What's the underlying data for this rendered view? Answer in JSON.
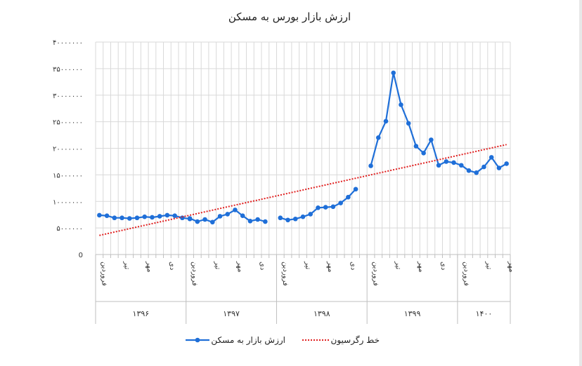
{
  "chart_data": {
    "type": "line",
    "title": "ارزش بازار بورس به مسکن",
    "ylim": [
      0,
      40000000
    ],
    "y_ticks": [
      "0",
      "5000000",
      "10000000",
      "15000000",
      "20000000",
      "25000000",
      "30000000",
      "35000000",
      "40000000"
    ],
    "y_tick_labels": [
      "0",
      "۵۰۰۰۰۰۰",
      "۱۰۰۰۰۰۰۰",
      "۱۵۰۰۰۰۰۰",
      "۲۰۰۰۰۰۰۰",
      "۲۵۰۰۰۰۰۰",
      "۳۰۰۰۰۰۰۰",
      "۳۵۰۰۰۰۰۰",
      "۴۰۰۰۰۰۰۰"
    ],
    "years": [
      "۱۳۹۶",
      "۱۳۹۷",
      "۱۳۹۸",
      "۱۳۹۹",
      "۱۴۰۰"
    ],
    "months_per_year": [
      12,
      12,
      12,
      12,
      7
    ],
    "month_tick_labels": [
      {
        "year_index": 0,
        "month_index": 0,
        "label": "فروردین"
      },
      {
        "year_index": 0,
        "month_index": 3,
        "label": "تیر"
      },
      {
        "year_index": 0,
        "month_index": 6,
        "label": "مهر"
      },
      {
        "year_index": 0,
        "month_index": 9,
        "label": "دی"
      },
      {
        "year_index": 1,
        "month_index": 0,
        "label": "فروردین"
      },
      {
        "year_index": 1,
        "month_index": 3,
        "label": "تیر"
      },
      {
        "year_index": 1,
        "month_index": 6,
        "label": "مهر"
      },
      {
        "year_index": 1,
        "month_index": 9,
        "label": "دی"
      },
      {
        "year_index": 2,
        "month_index": 0,
        "label": "فروردین"
      },
      {
        "year_index": 2,
        "month_index": 3,
        "label": "تیر"
      },
      {
        "year_index": 2,
        "month_index": 6,
        "label": "مهر"
      },
      {
        "year_index": 2,
        "month_index": 9,
        "label": "دی"
      },
      {
        "year_index": 3,
        "month_index": 0,
        "label": "فروردین"
      },
      {
        "year_index": 3,
        "month_index": 3,
        "label": "تیر"
      },
      {
        "year_index": 3,
        "month_index": 6,
        "label": "مهر"
      },
      {
        "year_index": 3,
        "month_index": 9,
        "label": "دی"
      },
      {
        "year_index": 4,
        "month_index": 0,
        "label": "فروردین"
      },
      {
        "year_index": 4,
        "month_index": 3,
        "label": "تیر"
      },
      {
        "year_index": 4,
        "month_index": 6,
        "label": "مهر"
      }
    ],
    "series": [
      {
        "name": "ارزش بازار به مسکن",
        "color": "#1f6fd8",
        "marker": "circle",
        "segments": [
          [
            7400000,
            7300000,
            6900000,
            6900000,
            6800000,
            6900000,
            7100000,
            7000000,
            7200000,
            7400000,
            7300000,
            6900000,
            6700000
          ],
          [
            6800000,
            6200000,
            6600000,
            6100000,
            7200000,
            7600000,
            8400000,
            7300000,
            6300000,
            6600000,
            6200000
          ],
          [
            6900000,
            6500000,
            6700000,
            7100000,
            7600000,
            8800000,
            8900000,
            9000000,
            9700000,
            10800000,
            12300000
          ],
          [
            16700000,
            22000000,
            25100000,
            34200000,
            28200000,
            24700000,
            20400000,
            19100000,
            21600000,
            16800000,
            17500000,
            17300000,
            16800000,
            15800000,
            15400000,
            16500000,
            18300000,
            16300000,
            17100000
          ]
        ]
      },
      {
        "name": "خط رگرسیون",
        "color": "#e02020",
        "style": "dotted",
        "start": 3600000,
        "end": 20700000
      }
    ],
    "grid": true,
    "legend": "bottom"
  }
}
